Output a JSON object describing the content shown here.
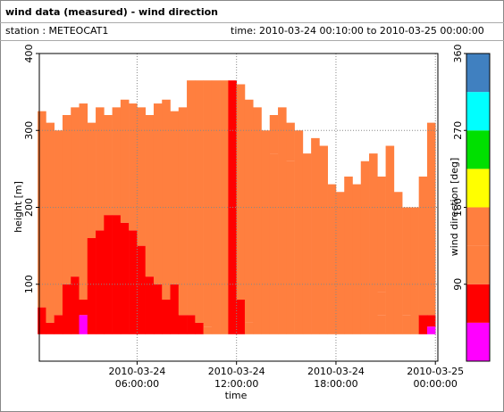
{
  "chart_data": {
    "type": "heatmap",
    "title": "wind data (measured) - wind direction",
    "subtitle": "station : METEOCAT1",
    "time_range": "time: 2010-03-24 00:10:00 to 2010-03-25 00:00:00",
    "x_label": "time",
    "y_label": "height [m]",
    "xlim": [
      0.1,
      24.15
    ],
    "ylim": [
      0,
      400
    ],
    "xticks": [
      {
        "value": 6,
        "label": "2010-03-24\n06:00:00"
      },
      {
        "value": 12,
        "label": "2010-03-24\n12:00:00"
      },
      {
        "value": 18,
        "label": "2010-03-24\n18:00:00"
      },
      {
        "value": 24,
        "label": "2010-03-25\n00:00:00"
      }
    ],
    "yticks": [
      100,
      200,
      300,
      400
    ],
    "grid": true,
    "column_width": 0.5,
    "colorbar": {
      "label": "wind direction [deg]",
      "lim": [
        0,
        360
      ],
      "ticks": [
        90,
        180,
        270,
        360
      ],
      "step": 45,
      "colors": [
        "#ff00ff",
        "#ff0000",
        "#ff7f3f",
        "#ff7f3f",
        "#ffff00",
        "#00e000",
        "#00ffff",
        "#4080c0",
        "#0000ff"
      ]
    },
    "columns": [
      {
        "x": 0.25,
        "segments": [
          [
            35,
            70,
            70
          ],
          [
            70,
            325,
            120
          ]
        ]
      },
      {
        "x": 0.75,
        "segments": [
          [
            35,
            50,
            70
          ],
          [
            50,
            310,
            120
          ]
        ]
      },
      {
        "x": 1.25,
        "segments": [
          [
            35,
            60,
            70
          ],
          [
            60,
            300,
            120
          ]
        ]
      },
      {
        "x": 1.75,
        "segments": [
          [
            35,
            100,
            70
          ],
          [
            100,
            320,
            120
          ]
        ]
      },
      {
        "x": 2.25,
        "segments": [
          [
            35,
            110,
            70
          ],
          [
            110,
            330,
            120
          ]
        ]
      },
      {
        "x": 2.75,
        "segments": [
          [
            35,
            60,
            20
          ],
          [
            60,
            80,
            70
          ],
          [
            80,
            335,
            120
          ]
        ]
      },
      {
        "x": 3.25,
        "segments": [
          [
            35,
            160,
            70
          ],
          [
            160,
            310,
            120
          ]
        ]
      },
      {
        "x": 3.75,
        "segments": [
          [
            35,
            170,
            70
          ],
          [
            170,
            330,
            120
          ]
        ]
      },
      {
        "x": 4.25,
        "segments": [
          [
            35,
            190,
            70
          ],
          [
            190,
            320,
            120
          ]
        ]
      },
      {
        "x": 4.75,
        "segments": [
          [
            35,
            190,
            70
          ],
          [
            190,
            330,
            120
          ]
        ]
      },
      {
        "x": 5.25,
        "segments": [
          [
            35,
            180,
            70
          ],
          [
            180,
            340,
            120
          ]
        ]
      },
      {
        "x": 5.75,
        "segments": [
          [
            35,
            170,
            70
          ],
          [
            170,
            335,
            120
          ]
        ]
      },
      {
        "x": 6.25,
        "segments": [
          [
            35,
            150,
            70
          ],
          [
            150,
            330,
            120
          ]
        ]
      },
      {
        "x": 6.75,
        "segments": [
          [
            35,
            110,
            70
          ],
          [
            110,
            320,
            120
          ]
        ]
      },
      {
        "x": 7.25,
        "segments": [
          [
            35,
            100,
            70
          ],
          [
            100,
            335,
            120
          ]
        ]
      },
      {
        "x": 7.75,
        "segments": [
          [
            35,
            80,
            70
          ],
          [
            80,
            340,
            120
          ]
        ]
      },
      {
        "x": 8.25,
        "segments": [
          [
            35,
            100,
            70
          ],
          [
            100,
            325,
            120
          ]
        ]
      },
      {
        "x": 8.75,
        "segments": [
          [
            35,
            60,
            70
          ],
          [
            60,
            330,
            120
          ]
        ]
      },
      {
        "x": 9.25,
        "segments": [
          [
            35,
            60,
            70
          ],
          [
            60,
            365,
            120
          ]
        ]
      },
      {
        "x": 9.75,
        "segments": [
          [
            35,
            50,
            70
          ],
          [
            50,
            365,
            120
          ]
        ]
      },
      {
        "x": 10.25,
        "segments": [
          [
            35,
            45,
            160
          ],
          [
            45,
            365,
            120
          ]
        ]
      },
      {
        "x": 10.75,
        "segments": [
          [
            35,
            365,
            160
          ]
        ]
      },
      {
        "x": 11.25,
        "segments": [
          [
            35,
            80,
            160
          ],
          [
            80,
            365,
            120
          ]
        ]
      },
      {
        "x": 11.75,
        "segments": [
          [
            35,
            365,
            70
          ]
        ]
      },
      {
        "x": 12.25,
        "segments": [
          [
            35,
            80,
            70
          ],
          [
            80,
            360,
            120
          ]
        ]
      },
      {
        "x": 12.75,
        "segments": [
          [
            35,
            50,
            160
          ],
          [
            50,
            340,
            120
          ]
        ]
      },
      {
        "x": 13.25,
        "segments": [
          [
            35,
            330,
            120
          ]
        ]
      },
      {
        "x": 13.75,
        "segments": [
          [
            35,
            300,
            120
          ]
        ]
      },
      {
        "x": 14.25,
        "segments": [
          [
            35,
            270,
            160
          ],
          [
            270,
            320,
            120
          ]
        ]
      },
      {
        "x": 14.75,
        "segments": [
          [
            35,
            280,
            160
          ],
          [
            280,
            330,
            120
          ]
        ]
      },
      {
        "x": 15.25,
        "segments": [
          [
            35,
            260,
            160
          ],
          [
            260,
            310,
            120
          ]
        ]
      },
      {
        "x": 15.75,
        "segments": [
          [
            35,
            300,
            120
          ]
        ]
      },
      {
        "x": 16.25,
        "segments": [
          [
            35,
            270,
            120
          ]
        ]
      },
      {
        "x": 16.75,
        "segments": [
          [
            35,
            290,
            120
          ]
        ]
      },
      {
        "x": 17.25,
        "segments": [
          [
            35,
            280,
            120
          ]
        ]
      },
      {
        "x": 17.75,
        "segments": [
          [
            35,
            230,
            120
          ]
        ]
      },
      {
        "x": 18.25,
        "segments": [
          [
            35,
            220,
            120
          ]
        ]
      },
      {
        "x": 18.75,
        "segments": [
          [
            35,
            240,
            120
          ]
        ]
      },
      {
        "x": 19.25,
        "segments": [
          [
            35,
            230,
            120
          ]
        ]
      },
      {
        "x": 19.75,
        "segments": [
          [
            35,
            260,
            120
          ]
        ]
      },
      {
        "x": 20.25,
        "segments": [
          [
            35,
            270,
            120
          ]
        ]
      },
      {
        "x": 20.75,
        "segments": [
          [
            35,
            60,
            120
          ],
          [
            60,
            90,
            160
          ],
          [
            90,
            240,
            120
          ]
        ]
      },
      {
        "x": 21.25,
        "segments": [
          [
            35,
            280,
            120
          ]
        ]
      },
      {
        "x": 21.75,
        "segments": [
          [
            35,
            220,
            120
          ]
        ]
      },
      {
        "x": 22.25,
        "segments": [
          [
            35,
            60,
            160
          ],
          [
            60,
            200,
            120
          ]
        ]
      },
      {
        "x": 22.75,
        "segments": [
          [
            35,
            200,
            120
          ]
        ]
      },
      {
        "x": 23.25,
        "segments": [
          [
            35,
            60,
            70
          ],
          [
            60,
            240,
            120
          ]
        ]
      },
      {
        "x": 23.75,
        "segments": [
          [
            35,
            45,
            20
          ],
          [
            45,
            60,
            70
          ],
          [
            60,
            310,
            120
          ]
        ]
      }
    ]
  }
}
